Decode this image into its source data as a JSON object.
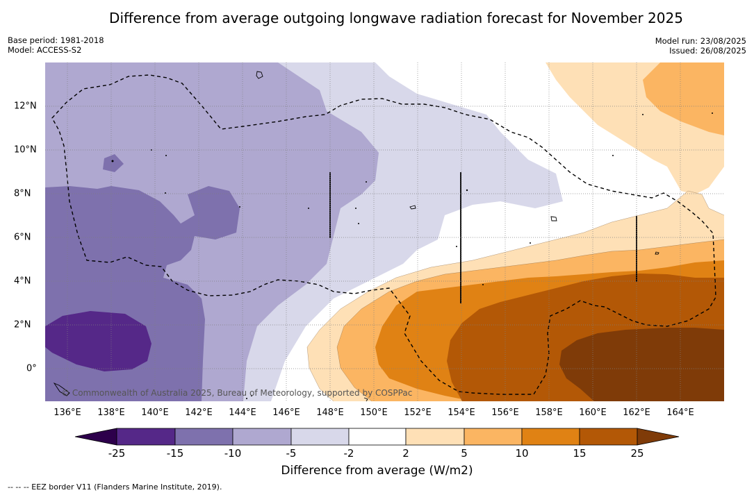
{
  "title": "Difference from average outgoing longwave radiation forecast for November 2025",
  "meta_left": {
    "base_period": "Base period: 1981-2018",
    "model": "Model: ACCESS-S2"
  },
  "meta_right": {
    "model_run": "Model run: 23/08/2025",
    "issued": "Issued: 26/08/2025"
  },
  "copyright": "© Commonwealth of Australia 2025, Bureau of Meteorology, supported by COSPPac",
  "lon_labels": [
    "136°E",
    "138°E",
    "140°E",
    "142°E",
    "144°E",
    "146°E",
    "148°E",
    "150°E",
    "152°E",
    "154°E",
    "156°E",
    "158°E",
    "160°E",
    "162°E",
    "164°E"
  ],
  "lat_labels": [
    "12°N",
    "10°N",
    "8°N",
    "6°N",
    "4°N",
    "2°N",
    "0°"
  ],
  "colorbar": {
    "ticks": [
      "-25",
      "-15",
      "-10",
      "-5",
      "-2",
      "2",
      "5",
      "10",
      "15",
      "25"
    ],
    "colors": [
      "#552888",
      "#7e71ad",
      "#afa8d0",
      "#d8d8ea",
      "#ffffff",
      "#fee0b6",
      "#fbb562",
      "#e08214",
      "#b35806",
      "#7f3b08"
    ],
    "under_color": "#2d004b",
    "over_color": "#7f3b08",
    "label": "Difference from average (W/m2)"
  },
  "footnote": "-- -- -- EEZ border V11 (Flanders Marine Institute, 2019)."
}
